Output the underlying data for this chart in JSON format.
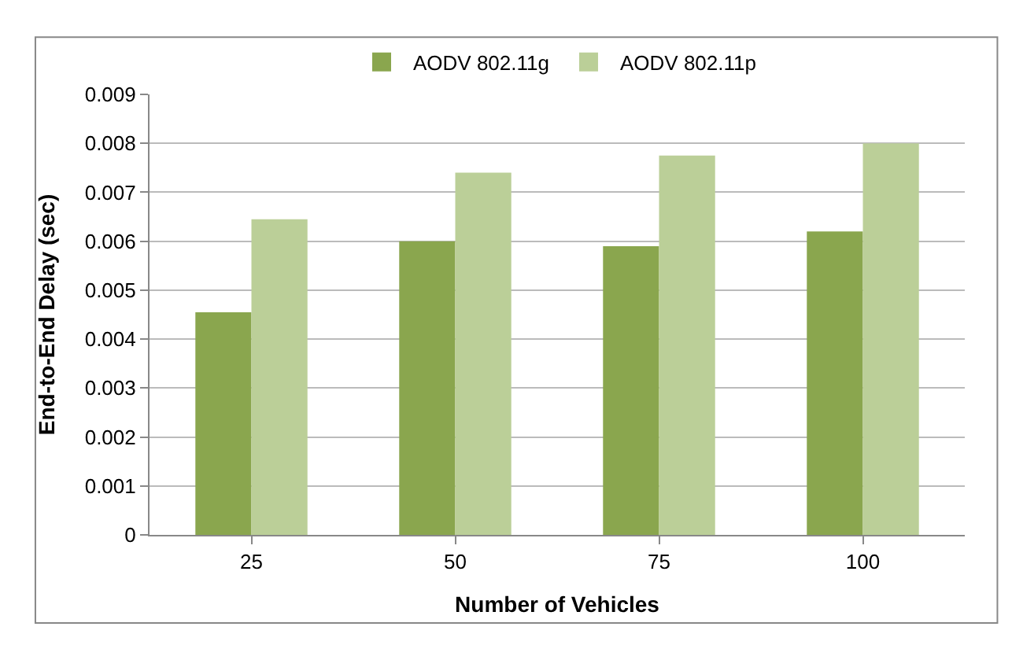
{
  "chart_data": {
    "type": "bar",
    "xlabel": "Number of Vehicles",
    "ylabel": "End-to-End Delay (sec)",
    "categories": [
      "25",
      "50",
      "75",
      "100"
    ],
    "series": [
      {
        "name": "AODV 802.11g",
        "color": "#8aa64e",
        "values": [
          0.00455,
          0.006,
          0.0059,
          0.0062
        ]
      },
      {
        "name": "AODV 802.11p",
        "color": "#bbcf98",
        "values": [
          0.00645,
          0.0074,
          0.00775,
          0.008
        ]
      }
    ],
    "ylim": [
      0,
      0.009
    ],
    "yticks": [
      0,
      0.001,
      0.002,
      0.003,
      0.004,
      0.005,
      0.006,
      0.007,
      0.008,
      0.009
    ],
    "grid": "y",
    "legend": "top"
  }
}
